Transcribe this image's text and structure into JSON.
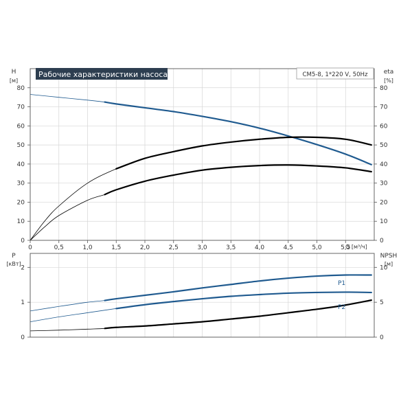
{
  "chart_data": [
    {
      "type": "line",
      "title": "Рабочие характеристики насоса",
      "model_label": "CM5-8, 1*220 V, 50Hz",
      "xlabel": "Q [м³/ч]",
      "ylabel_left": "H",
      "ylabel_left_unit": "[м]",
      "ylabel_right": "eta",
      "ylabel_right_unit": "[%]",
      "xlim": [
        0,
        6
      ],
      "ylim": [
        0,
        90
      ],
      "xticks": [
        "0",
        "0,5",
        "1,0",
        "1,5",
        "2,0",
        "2,5",
        "3,0",
        "3,5",
        "4,0",
        "4,5",
        "5,0",
        "5,5"
      ],
      "yticks": [
        "0",
        "10",
        "20",
        "30",
        "40",
        "50",
        "60",
        "70",
        "80"
      ],
      "grid": true,
      "series": [
        {
          "key": "head",
          "color": "#1f5a8f",
          "x": [
            0,
            0.5,
            1.0,
            1.3,
            1.5,
            2.0,
            2.5,
            3.0,
            3.5,
            4.0,
            4.5,
            5.0,
            5.5,
            5.95
          ],
          "y": [
            76.5,
            75,
            73.5,
            72.5,
            71.5,
            69.5,
            67.5,
            65,
            62.2,
            58.8,
            54.7,
            50.2,
            45.2,
            39.7
          ]
        },
        {
          "key": "eta_total",
          "color": "#000000",
          "x": [
            0,
            0.25,
            0.5,
            1.0,
            1.5,
            2.0,
            2.5,
            3.0,
            3.5,
            4.0,
            4.5,
            5.0,
            5.5,
            5.95
          ],
          "y": [
            0,
            10,
            18,
            30,
            37.5,
            43,
            46.5,
            49.5,
            51.5,
            53,
            54,
            54,
            53,
            50
          ]
        },
        {
          "key": "eta_pump",
          "color": "#000000",
          "x": [
            0,
            0.25,
            0.5,
            1.0,
            1.3,
            1.5,
            2.0,
            2.5,
            3.0,
            3.5,
            4.0,
            4.5,
            5.0,
            5.5,
            5.95
          ],
          "y": [
            0,
            7,
            13,
            21,
            24,
            26.5,
            31,
            34.2,
            36.8,
            38.3,
            39.2,
            39.5,
            39,
            38,
            36
          ]
        }
      ]
    },
    {
      "type": "line",
      "ylabel_left": "P",
      "ylabel_left_unit": "[кВт]",
      "ylabel_right": "NPSH",
      "ylabel_right_unit": "[м]",
      "xlim": [
        0,
        6
      ],
      "ylim_left": [
        0,
        2.4
      ],
      "ylim_right": [
        0,
        12
      ],
      "yticks_left": [
        "0",
        "1",
        "2"
      ],
      "yticks_right": [
        "0",
        "5",
        "10"
      ],
      "grid": true,
      "series": [
        {
          "name": "P1",
          "axis": "left",
          "color": "#1f5a8f",
          "x": [
            0,
            0.5,
            1.0,
            1.3,
            1.5,
            2.0,
            2.5,
            3.0,
            3.5,
            4.0,
            4.5,
            5.0,
            5.5,
            5.95
          ],
          "y": [
            0.75,
            0.88,
            1.0,
            1.05,
            1.1,
            1.2,
            1.3,
            1.41,
            1.51,
            1.61,
            1.69,
            1.75,
            1.78,
            1.78
          ]
        },
        {
          "name": "P2",
          "axis": "left",
          "color": "#1f5a8f",
          "x": [
            0,
            0.5,
            1.0,
            1.5,
            2.0,
            2.5,
            3.0,
            3.5,
            4.0,
            4.5,
            5.0,
            5.5,
            5.95
          ],
          "y": [
            0.44,
            0.58,
            0.7,
            0.82,
            0.93,
            1.02,
            1.1,
            1.17,
            1.22,
            1.26,
            1.28,
            1.29,
            1.28
          ]
        },
        {
          "key": "npsh",
          "axis": "right",
          "color": "#000000",
          "x": [
            0,
            0.5,
            1.0,
            1.3,
            1.5,
            2.0,
            2.5,
            3.0,
            3.5,
            4.0,
            4.5,
            5.0,
            5.5,
            5.95
          ],
          "y": [
            0.9,
            1.0,
            1.15,
            1.25,
            1.4,
            1.6,
            1.9,
            2.2,
            2.6,
            3.0,
            3.5,
            4.0,
            4.6,
            5.3
          ]
        }
      ]
    }
  ]
}
